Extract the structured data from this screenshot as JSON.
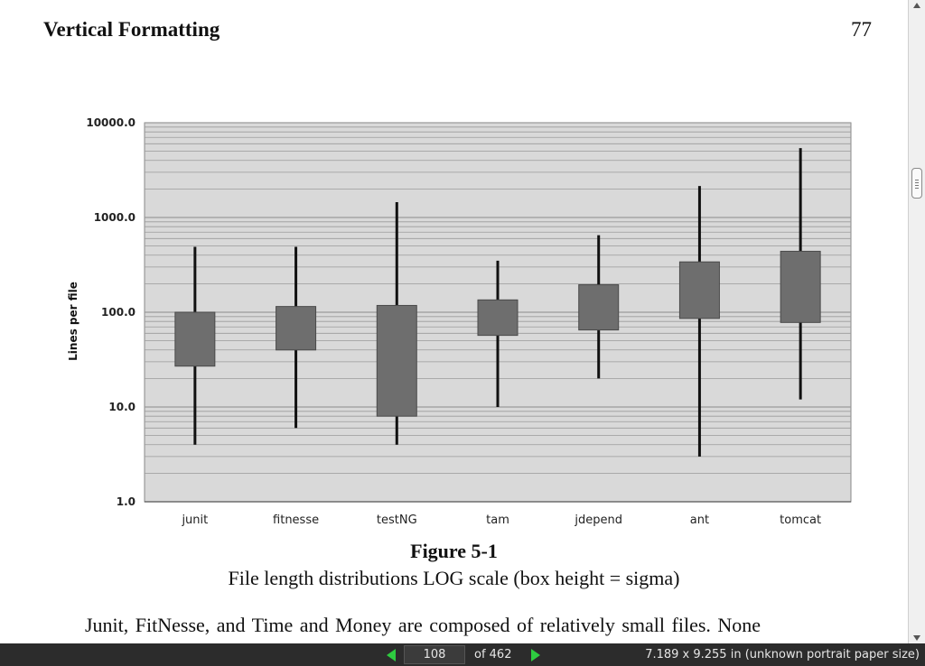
{
  "page": {
    "header": "Vertical Formatting",
    "number": "77",
    "figure_title": "Figure 5-1",
    "figure_caption": "File length distributions LOG scale (box height = sigma)",
    "body_text": "Junit, FitNesse, and Time and Money are composed of relatively small files. None"
  },
  "chart_data": {
    "type": "box",
    "title": "",
    "ylabel": "Lines per file",
    "xlabel": "",
    "yscale": "log",
    "ylim": [
      1,
      10000
    ],
    "yticks": [
      "1.0",
      "10.0",
      "100.0",
      "1000.0",
      "10000.0"
    ],
    "grid": true,
    "categories": [
      "junit",
      "fitnesse",
      "testNG",
      "tam",
      "jdepend",
      "ant",
      "tomcat"
    ],
    "whisker_low": [
      4,
      6,
      4,
      10,
      20,
      3,
      12
    ],
    "box_low": [
      27,
      40,
      8,
      57,
      65,
      86,
      78
    ],
    "box_high": [
      100,
      115,
      118,
      135,
      195,
      340,
      440
    ],
    "whisker_high": [
      490,
      490,
      1450,
      350,
      650,
      2150,
      5400
    ],
    "colors": {
      "box": "#6e6e6e",
      "whisker": "#111111",
      "plot_bg": "#d9d9d9",
      "grid": "#9a9a9a"
    }
  },
  "viewer": {
    "page_input": "108",
    "page_count_label": "of  462",
    "paper_size": "7.189 x 9.255 in (unknown portrait paper size)",
    "prev_icon": "triangle-left",
    "next_icon": "triangle-right",
    "accent": "#2ecc40"
  }
}
